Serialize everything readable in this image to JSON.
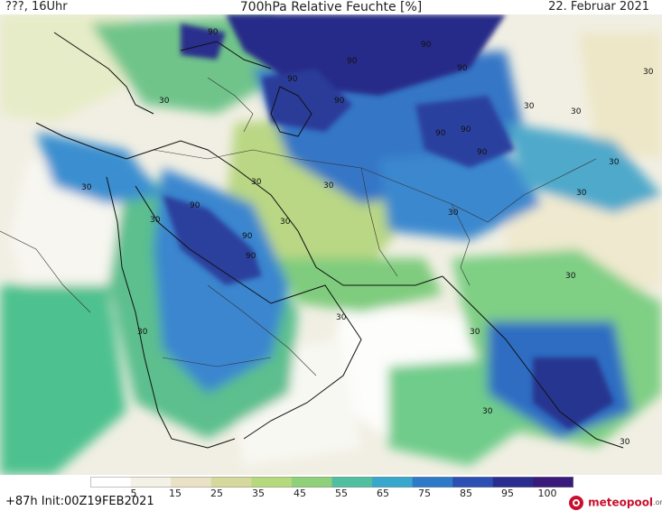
{
  "header": {
    "left": "???, 16Uhr",
    "center": "700hPa Relative Feuchte [%]",
    "right": "22. Februar 2021"
  },
  "footer": {
    "run_info": "+87h Init:00Z19FEB2021",
    "logo_text": "meteopool",
    "logo_tld": ".org"
  },
  "legend": {
    "ticks": [
      "5",
      "15",
      "25",
      "35",
      "45",
      "55",
      "65",
      "75",
      "85",
      "95",
      "100"
    ],
    "colors": [
      "#ffffff",
      "#f4f1e6",
      "#e9e2c4",
      "#d5d99c",
      "#b7d97d",
      "#8fd07a",
      "#4fbfa0",
      "#38a7cc",
      "#2f79c9",
      "#2b4fb2",
      "#2a2d8e",
      "#3a1a7a"
    ]
  },
  "contour_labels": {
    "low": "30",
    "high": "90"
  }
}
